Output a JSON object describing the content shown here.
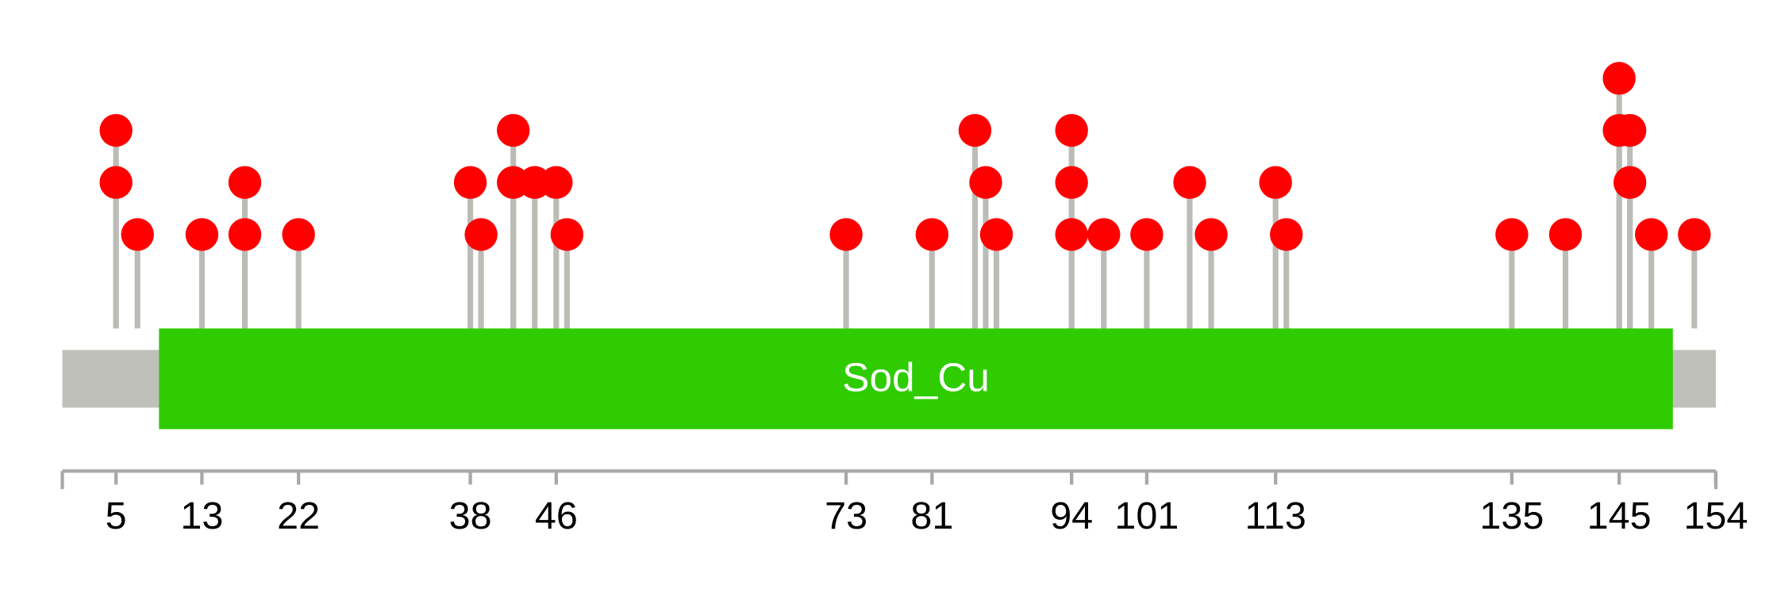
{
  "chart_data": {
    "type": "lollipop",
    "xlim": [
      0,
      154
    ],
    "xticks": [
      5,
      13,
      22,
      38,
      46,
      73,
      81,
      94,
      101,
      113,
      135,
      145,
      154
    ],
    "ylim": [
      0,
      4
    ],
    "protein_color": "#c0c0bb",
    "stick_color": "#bcbcb7",
    "domains": [
      {
        "name": "Sod_Cu",
        "start": 9,
        "end": 150,
        "color": "#2ecc00"
      }
    ],
    "series": [
      {
        "color": "#ff0000",
        "x": [
          5,
          5,
          7,
          13,
          17,
          17,
          22,
          38,
          39,
          42,
          42,
          44,
          46,
          47,
          73,
          81,
          85,
          86,
          87,
          94,
          94,
          94,
          97,
          101,
          105,
          107,
          113,
          114,
          135,
          140,
          145,
          145,
          146,
          146,
          148,
          152
        ],
        "values": [
          2,
          3,
          1,
          1,
          1,
          2,
          1,
          2,
          1,
          2,
          3,
          2,
          2,
          1,
          1,
          1,
          3,
          2,
          1,
          1,
          2,
          3,
          1,
          1,
          2,
          1,
          2,
          1,
          1,
          1,
          3,
          4,
          2,
          3,
          1,
          1
        ]
      }
    ]
  }
}
